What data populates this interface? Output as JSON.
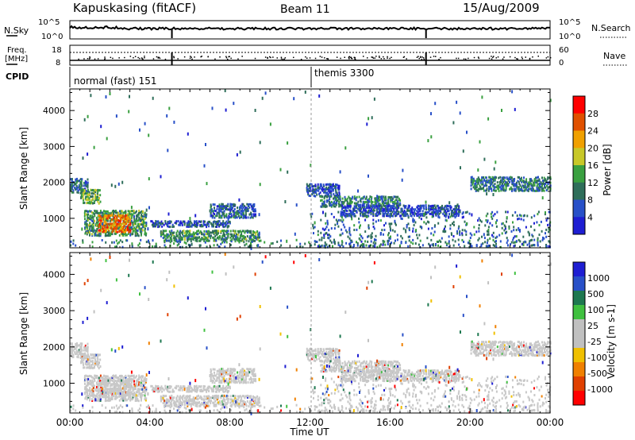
{
  "header": {
    "station": "Kapuskasing (fitACF)",
    "beam": "Beam 11",
    "date": "15/Aug/2009"
  },
  "noise_panel": {
    "left_label": "N.Sky",
    "right_label": "N.Search",
    "yticks_left": [
      "10^5",
      "10^0"
    ],
    "yticks_right": [
      "10^5",
      "10^0"
    ]
  },
  "freq_panel": {
    "left_label_1": "Freq.",
    "left_label_2": "[MHz]",
    "right_label": "Nave",
    "yticks_left": [
      "18",
      "8"
    ],
    "yticks_right": [
      "60",
      "0"
    ]
  },
  "cpid": {
    "label": "CPID",
    "programs": [
      {
        "name": "normal (fast) 151",
        "start_hour": 0
      },
      {
        "name": "themis 3300",
        "start_hour": 12
      }
    ]
  },
  "colors": {
    "power_scale": [
      "#1e1ed2",
      "#2850c8",
      "#2f6e5a",
      "#3aa040",
      "#c8c828",
      "#f0a000",
      "#e05000",
      "#ff0000"
    ],
    "velocity_scale": [
      "#ff0000",
      "#e04000",
      "#f08000",
      "#f0c000",
      "#c0c0c0",
      "#c0c0c0",
      "#40c040",
      "#1e7850",
      "#2850c8",
      "#1e1ed2"
    ]
  },
  "chart_data": [
    {
      "type": "heatmap",
      "name": "power",
      "ylabel": "Slant Range [km]",
      "ylim": [
        180,
        4600
      ],
      "yticks": [
        1000,
        2000,
        3000,
        4000
      ],
      "xlim": [
        0,
        24
      ],
      "colorbar": {
        "label": "Power [dB]",
        "ticks": [
          "4",
          "8",
          "12",
          "16",
          "20",
          "24",
          "28"
        ]
      },
      "echo_regions": [
        {
          "t0": 0.0,
          "t1": 0.9,
          "r0": 1700,
          "r1": 2100,
          "value": 8
        },
        {
          "t0": 0.5,
          "t1": 1.5,
          "r0": 1400,
          "r1": 1800,
          "value": 14
        },
        {
          "t0": 0.7,
          "t1": 3.8,
          "r0": 500,
          "r1": 1200,
          "value": 12
        },
        {
          "t0": 1.4,
          "t1": 3.0,
          "r0": 600,
          "r1": 1100,
          "value": 24
        },
        {
          "t0": 4.0,
          "t1": 8.0,
          "r0": 750,
          "r1": 950,
          "value": 6
        },
        {
          "t0": 7.0,
          "t1": 9.3,
          "r0": 1000,
          "r1": 1400,
          "value": 8
        },
        {
          "t0": 4.5,
          "t1": 9.5,
          "r0": 350,
          "r1": 650,
          "value": 12
        },
        {
          "t0": 0.0,
          "t1": 24.0,
          "r0": 180,
          "r1": 400,
          "value": 10
        },
        {
          "t0": 11.8,
          "t1": 13.5,
          "r0": 1600,
          "r1": 1950,
          "value": 6
        },
        {
          "t0": 12.5,
          "t1": 16.5,
          "r0": 1300,
          "r1": 1600,
          "value": 10
        },
        {
          "t0": 13.5,
          "t1": 19.5,
          "r0": 1050,
          "r1": 1350,
          "value": 6
        },
        {
          "t0": 20.0,
          "t1": 24.0,
          "r0": 1750,
          "r1": 2150,
          "value": 10
        },
        {
          "t0": 12.0,
          "t1": 24.0,
          "r0": 200,
          "r1": 1200,
          "value": 8
        }
      ]
    },
    {
      "type": "heatmap",
      "name": "velocity",
      "ylabel": "Slant Range [km]",
      "ylim": [
        180,
        4600
      ],
      "yticks": [
        1000,
        2000,
        3000,
        4000
      ],
      "xlim": [
        0,
        24
      ],
      "xticks": [
        "00:00",
        "04:00",
        "08:00",
        "12:00",
        "16:00",
        "20:00",
        "00:00"
      ],
      "xlabel": "Time UT",
      "colorbar": {
        "label": "Velocity [m s-1]",
        "ticks": [
          "1000",
          "500",
          "100",
          "25",
          "-25",
          "-100",
          "-500",
          "-1000"
        ]
      },
      "dominant_value": 0
    }
  ]
}
